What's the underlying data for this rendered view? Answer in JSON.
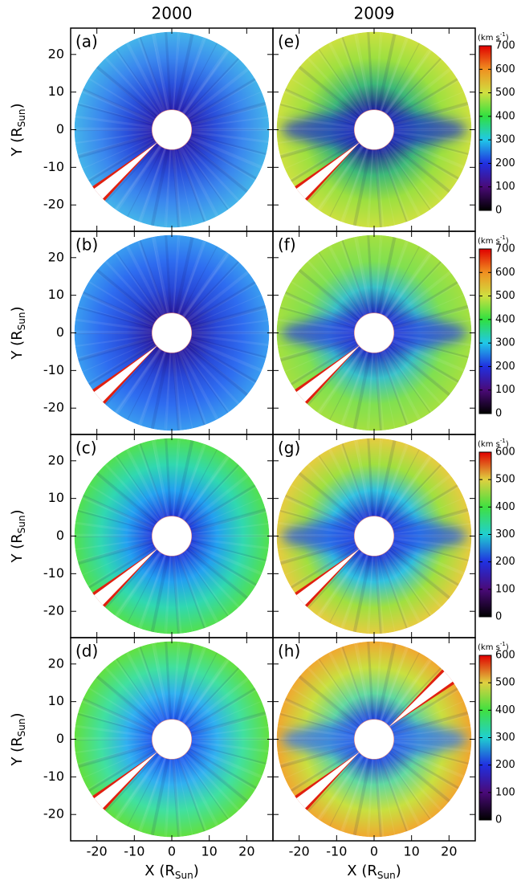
{
  "column_titles": [
    "2000",
    "2009"
  ],
  "axes": {
    "xlim": [
      -27,
      27
    ],
    "ylim": [
      -27,
      27
    ],
    "xticks": [
      -20,
      -10,
      0,
      10,
      20
    ],
    "yticks": [
      -20,
      -10,
      0,
      10,
      20
    ],
    "x_label": [
      "X (R",
      "Sun",
      ")"
    ],
    "y_label": [
      "Y (R",
      "Sun",
      ")"
    ]
  },
  "chart_data": [
    {
      "type": "image",
      "label": "(a)",
      "colors": [
        "#2a20b0",
        "#2a50dc",
        "#3a86ee",
        "#44b4ea"
      ]
    },
    {
      "type": "image",
      "label": "(b)",
      "colors": [
        "#2a1aa0",
        "#2848d8",
        "#2e6cf0",
        "#3a9cf0"
      ]
    },
    {
      "type": "image",
      "label": "(c)",
      "colors": [
        "#2038dc",
        "#22a0f0",
        "#30d8b0",
        "#52e050"
      ]
    },
    {
      "type": "image",
      "label": "(d)",
      "colors": [
        "#2058f0",
        "#30b0f0",
        "#40e0a0",
        "#62e040"
      ]
    },
    {
      "type": "image",
      "label": "(e)",
      "colors": [
        "#20209a",
        "#3cb878",
        "#9ce040",
        "#cce040"
      ],
      "band_color": "#2436c8"
    },
    {
      "type": "image",
      "label": "(f)",
      "colors": [
        "#2030c0",
        "#38c0c8",
        "#80e050",
        "#a4e040"
      ],
      "band_color": "#2a40e0"
    },
    {
      "type": "image",
      "label": "(g)",
      "colors": [
        "#2030d0",
        "#30c0e0",
        "#a0e040",
        "#e6cc40"
      ],
      "band_color": "#2850e8"
    },
    {
      "type": "image",
      "label": "(h)",
      "colors": [
        "#2040e0",
        "#60d8a0",
        "#c8e040",
        "#f0a830"
      ],
      "band_color": "#3070f0"
    }
  ],
  "colorbars": [
    {
      "unit": [
        "(km s",
        "-1",
        ")"
      ],
      "lim": [
        0,
        700
      ],
      "ticks": [
        0,
        100,
        200,
        300,
        400,
        500,
        600,
        700
      ],
      "colors": [
        "#000000",
        "#4a0a78",
        "#2030e0",
        "#20c8e8",
        "#30e040",
        "#d0e040",
        "#f09020",
        "#e00000"
      ]
    },
    {
      "unit": [
        "(km s",
        "-1",
        ")"
      ],
      "lim": [
        0,
        700
      ],
      "ticks": [
        0,
        100,
        200,
        300,
        400,
        500,
        600,
        700
      ],
      "colors": [
        "#000000",
        "#4a0a78",
        "#2030e0",
        "#20c8e8",
        "#30e040",
        "#d0e040",
        "#f09020",
        "#e00000"
      ]
    },
    {
      "unit": [
        "(km s",
        "-1",
        ")"
      ],
      "lim": [
        0,
        600
      ],
      "ticks": [
        0,
        100,
        200,
        300,
        400,
        500,
        600
      ],
      "colors": [
        "#000000",
        "#4a0a78",
        "#2030e0",
        "#20d0d0",
        "#40e040",
        "#e0d040",
        "#e00000"
      ]
    },
    {
      "unit": [
        "(km s",
        "-1",
        ")"
      ],
      "lim": [
        0,
        600
      ],
      "ticks": [
        0,
        100,
        200,
        300,
        400,
        500,
        600
      ],
      "colors": [
        "#000000",
        "#4a0a78",
        "#2030e0",
        "#20d0d0",
        "#40e040",
        "#e0d040",
        "#e00000"
      ]
    }
  ]
}
